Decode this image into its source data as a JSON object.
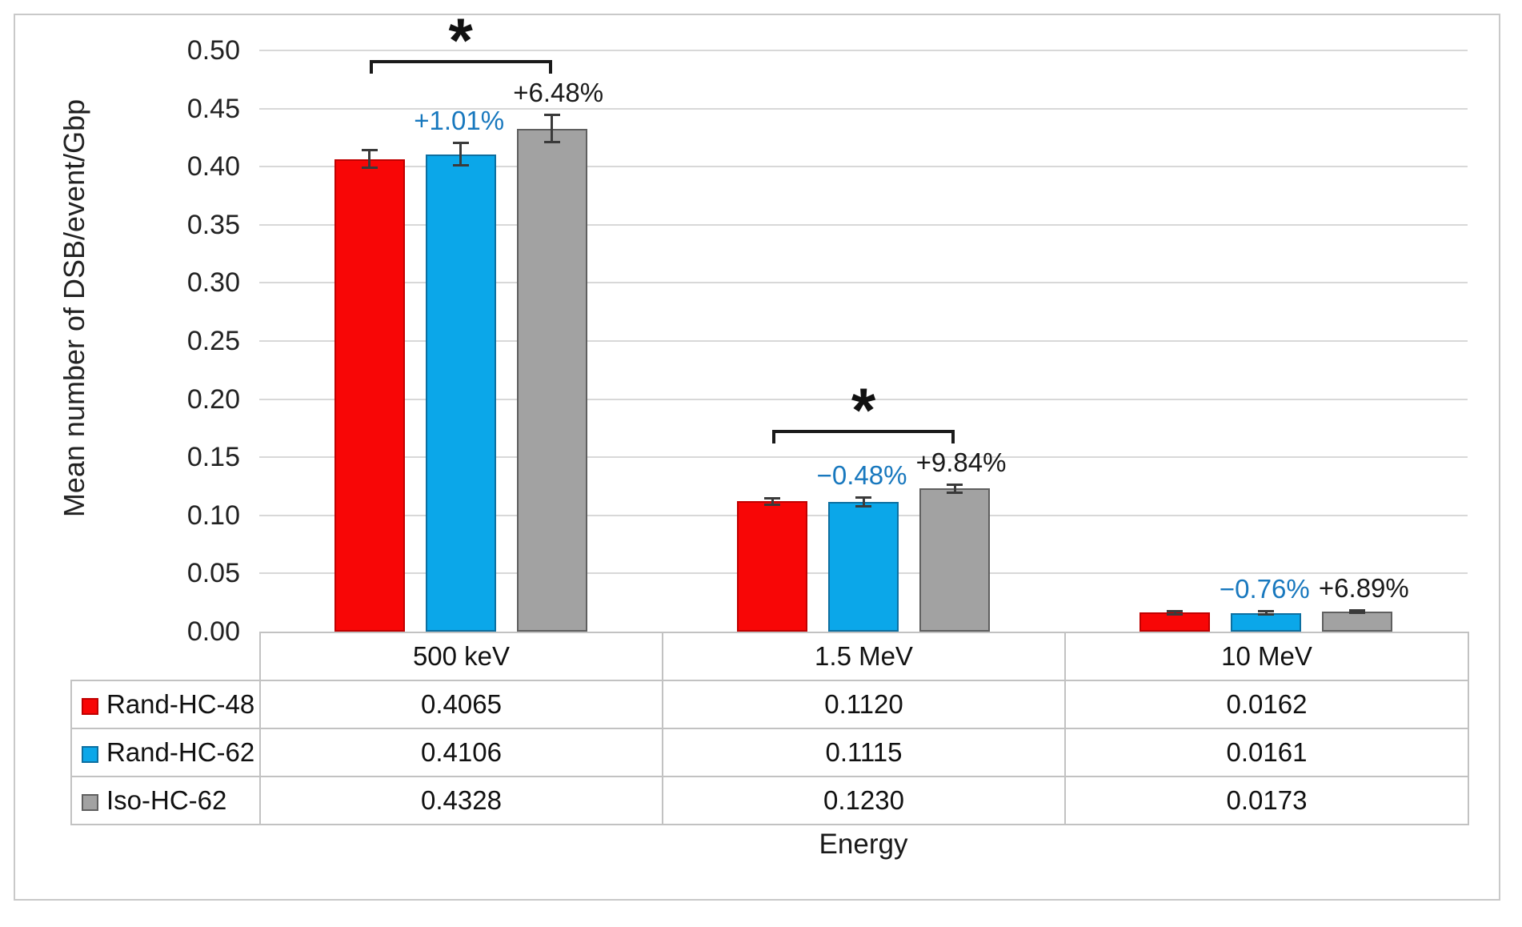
{
  "chart_data": {
    "type": "bar",
    "title": "",
    "ylabel": "Mean number of DSB/event/Gbp",
    "xlabel": "Energy",
    "categories": [
      "500 keV",
      "1.5 MeV",
      "10 MeV"
    ],
    "series": [
      {
        "name": "Rand-HC-48",
        "color": "#f80606",
        "border_color": "#c00000",
        "values": [
          0.4065,
          0.112,
          0.0162
        ],
        "values_display": [
          "0.4065",
          "0.1120",
          "0.0162"
        ],
        "errors": [
          0.008,
          0.003,
          0.0015
        ]
      },
      {
        "name": "Rand-HC-62",
        "color": "#0ba7e9",
        "border_color": "#0d6fa0",
        "values": [
          0.4106,
          0.1115,
          0.0161
        ],
        "values_display": [
          "0.4106",
          "0.1115",
          "0.0161"
        ],
        "errors": [
          0.01,
          0.004,
          0.0015
        ],
        "annotations": [
          "+1.01%",
          "−0.48%",
          "−0.76%"
        ],
        "annotation_color": "#1878be"
      },
      {
        "name": "Iso-HC-62",
        "color": "#a2a2a2",
        "border_color": "#5f5f5f",
        "values": [
          0.4328,
          0.123,
          0.0173
        ],
        "values_display": [
          "0.4328",
          "0.1230",
          "0.0173"
        ],
        "errors": [
          0.012,
          0.004,
          0.0015
        ],
        "annotations": [
          "+6.48%",
          "+9.84%",
          "+6.89%"
        ],
        "annotation_color": "#1a1a1a"
      }
    ],
    "significance": [
      {
        "category_index": 0,
        "category": "500 keV",
        "label": "*"
      },
      {
        "category_index": 1,
        "category": "1.5 MeV",
        "label": "*"
      }
    ],
    "y_axis": {
      "min": 0.0,
      "max": 0.5,
      "step": 0.05,
      "ticks": [
        "0.00",
        "0.05",
        "0.10",
        "0.15",
        "0.20",
        "0.25",
        "0.30",
        "0.35",
        "0.40",
        "0.45",
        "0.50"
      ]
    },
    "grid": true,
    "legend_position": "table-left",
    "grid_color": "#d8d8d8",
    "error_bar_color": "#3a3a3a"
  }
}
